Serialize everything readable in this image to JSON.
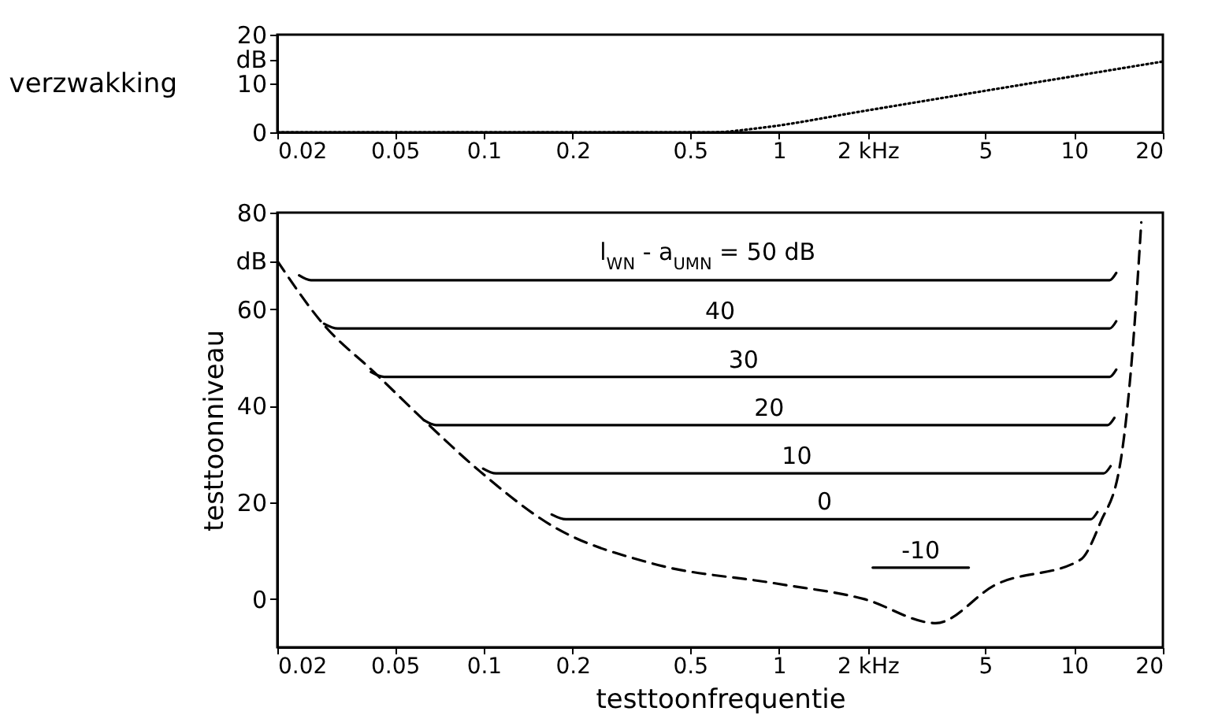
{
  "chart_data": [
    {
      "type": "line",
      "ylabel": "verzwakking",
      "log": "x",
      "xlim": [
        0.02,
        20
      ],
      "xticks": [
        0.02,
        0.05,
        0.1,
        0.2,
        0.5,
        1,
        {
          "value": 2,
          "label": "2 kHz"
        },
        5,
        10,
        20
      ],
      "ylim": [
        0,
        20
      ],
      "yticks": [
        0,
        10,
        {
          "value": 15,
          "label": "dB"
        },
        20
      ],
      "grid": false,
      "marker": "none",
      "series": [
        {
          "color": "#000000",
          "line_style": "dotted",
          "x": [
            0.02,
            0.6,
            0.84,
            2,
            5,
            10,
            20
          ],
          "values": [
            0,
            0,
            0.8,
            4.5,
            8.5,
            11.5,
            14.5
          ]
        }
      ]
    },
    {
      "type": "line",
      "xlabel": "testtoonfrequentie",
      "ylabel": "testtoonniveau",
      "log": "x",
      "xlim": [
        0.02,
        20
      ],
      "xticks": [
        0.02,
        0.05,
        0.1,
        0.2,
        0.5,
        1,
        {
          "value": 2,
          "label": "2 kHz"
        },
        5,
        10,
        20
      ],
      "ylim": [
        -10,
        80
      ],
      "yticks": [
        0,
        20,
        40,
        60,
        {
          "value": 70,
          "label": "dB"
        },
        80
      ],
      "grid": false,
      "marker": "none",
      "series": [
        {
          "name": "l$_{WN}$ - a$_{UMN}$ = 50 dB",
          "color": "#000000",
          "line_style": "solid",
          "x": [
            0.0237,
            0.026,
            13.2,
            13.9
          ],
          "values": [
            67,
            66,
            66,
            67.5
          ]
        },
        {
          "name": "40",
          "color": "#000000",
          "line_style": "solid",
          "x": [
            0.0288,
            0.032,
            13.2,
            13.9
          ],
          "values": [
            57,
            56,
            56,
            57.5
          ]
        },
        {
          "name": "30",
          "color": "#000000",
          "line_style": "solid",
          "x": [
            0.0415,
            0.046,
            13.2,
            13.9
          ],
          "values": [
            47,
            46,
            46,
            47.5
          ]
        },
        {
          "name": "20",
          "color": "#000000",
          "line_style": "solid",
          "x": [
            0.0628,
            0.069,
            13,
            13.7
          ],
          "values": [
            37,
            36,
            36,
            37.5
          ]
        },
        {
          "name": "10",
          "color": "#000000",
          "line_style": "solid",
          "x": [
            0.0996,
            0.11,
            12.6,
            13.3
          ],
          "values": [
            27,
            26,
            26,
            27.5
          ]
        },
        {
          "name": "0",
          "color": "#000000",
          "line_style": "solid",
          "x": [
            0.17,
            0.19,
            11.4,
            12
          ],
          "values": [
            17.5,
            16.5,
            16.5,
            18
          ]
        },
        {
          "name": "-10",
          "color": "#000000",
          "line_style": "solid",
          "x": [
            2.08,
            4.4
          ],
          "values": [
            6.5,
            6.5
          ]
        },
        {
          "color": "#000000",
          "line_style": "dashed",
          "x": [
            0.02,
            0.0288,
            0.0425,
            0.0628,
            0.0968,
            0.17,
            0.37,
            0.98,
            1.94,
            3.4,
            5.4,
            10.5,
            12.3,
            14.3,
            15.8,
            16.9
          ],
          "values": [
            70,
            56.7,
            47,
            37,
            26.5,
            15.2,
            7.4,
            3.2,
            0,
            -5,
            2.9,
            8.1,
            15.9,
            27.6,
            51.7,
            78
          ]
        }
      ]
    }
  ]
}
